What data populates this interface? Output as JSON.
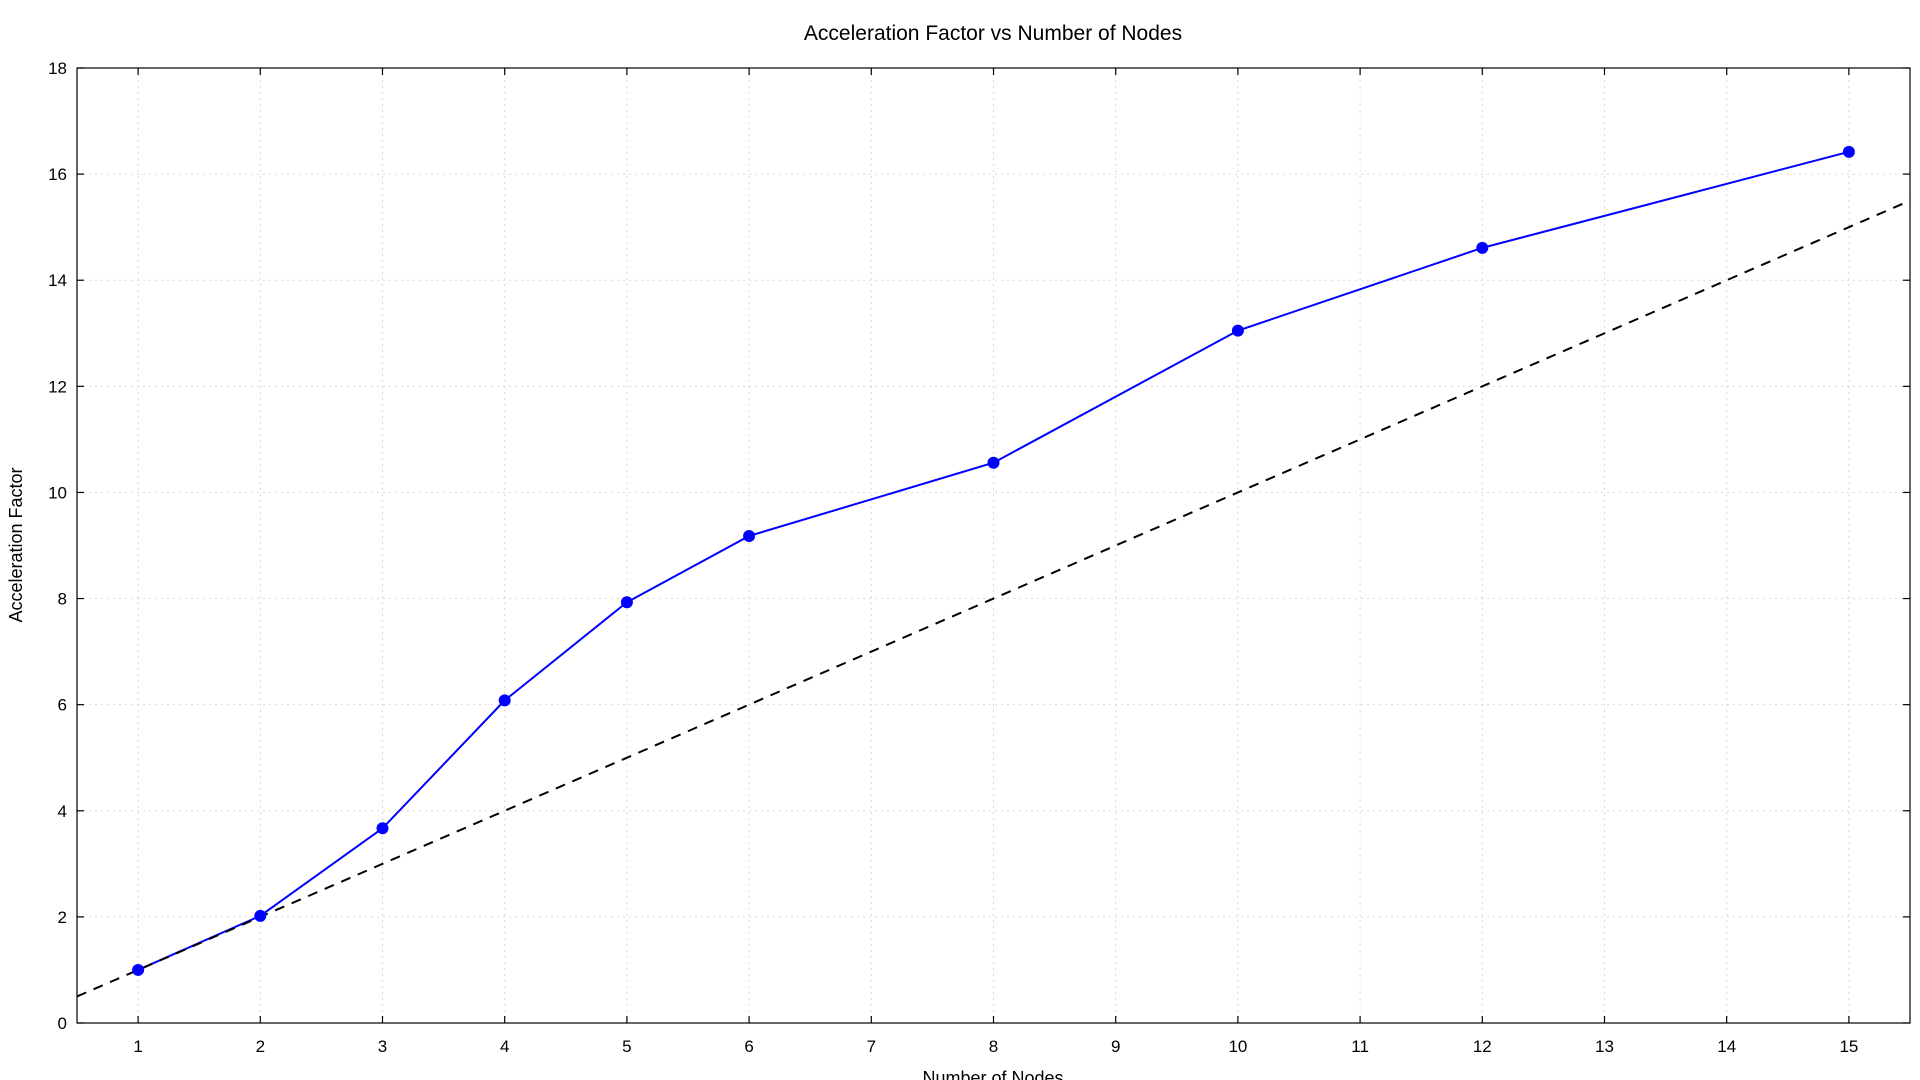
{
  "chart_data": {
    "type": "line",
    "title": "Acceleration Factor vs Number of Nodes",
    "xlabel": "Number of Nodes",
    "ylabel": "Acceleration Factor",
    "xlim": [
      0.5,
      15.5
    ],
    "ylim": [
      0,
      18
    ],
    "xticks": [
      "1",
      "2",
      "3",
      "4",
      "5",
      "6",
      "7",
      "8",
      "9",
      "10",
      "11",
      "12",
      "13",
      "14",
      "15"
    ],
    "yticks": [
      "0",
      "2",
      "4",
      "6",
      "8",
      "10",
      "12",
      "14",
      "16",
      "18"
    ],
    "grid": true,
    "series": [
      {
        "color": "#0000ff",
        "style": "solid-with-markers",
        "x": [
          1,
          2,
          3,
          4,
          5,
          6,
          8,
          10,
          12,
          15
        ],
        "y": [
          1.0,
          2.02,
          3.67,
          6.08,
          7.93,
          9.18,
          10.56,
          13.05,
          14.61,
          16.42
        ]
      },
      {
        "color": "#000000",
        "style": "dashed",
        "x": [
          0.5,
          15.5
        ],
        "y": [
          0.5,
          15.5
        ]
      }
    ]
  }
}
